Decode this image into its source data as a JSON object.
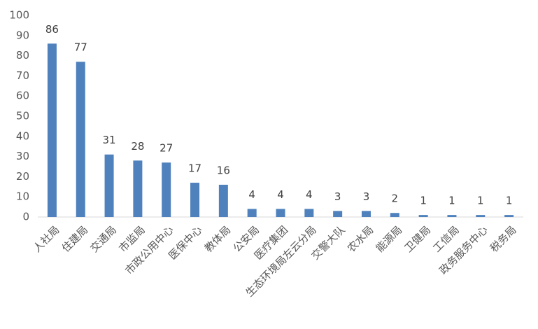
{
  "chart_data": {
    "type": "bar",
    "categories": [
      "人社局",
      "住建局",
      "交通局",
      "市监局",
      "市政公用中心",
      "医保中心",
      "教体局",
      "公安局",
      "医疗集团",
      "生态环境局左云分局",
      "交警大队",
      "农水局",
      "能源局",
      "卫健局",
      "工信局",
      "政务服务中心",
      "税务局"
    ],
    "values": [
      86,
      77,
      31,
      28,
      27,
      17,
      16,
      4,
      4,
      4,
      3,
      3,
      2,
      1,
      1,
      1,
      1
    ],
    "color": "#4f81bd",
    "ylim": [
      0,
      100
    ],
    "yticks": [
      0,
      10,
      20,
      30,
      40,
      50,
      60,
      70,
      80,
      90,
      100
    ],
    "grid": false
  }
}
